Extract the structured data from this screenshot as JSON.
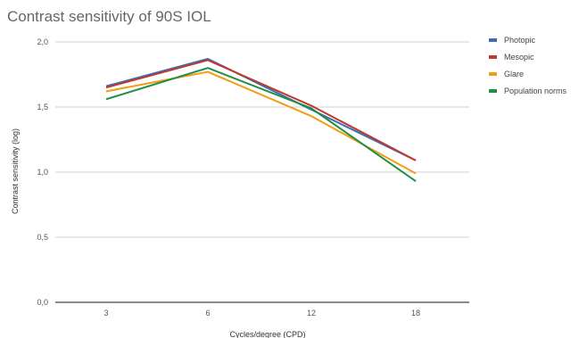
{
  "chart_data": {
    "type": "line",
    "title": "Contrast sensitivity of 90S IOL",
    "xlabel": "Cycles/degree (CPD)",
    "ylabel": "Contrast sensitivity (log)",
    "categories": [
      "3",
      "6",
      "12",
      "18"
    ],
    "ylim": [
      0,
      2
    ],
    "yticks": [
      0,
      0.5,
      1,
      1.5,
      2
    ],
    "ytick_labels": [
      "0,0",
      "0,5",
      "1,0",
      "1,5",
      "2,0"
    ],
    "grid": true,
    "legend_position": "right",
    "series": [
      {
        "name": "Photopic",
        "color": "#3d6db5",
        "values": [
          1.66,
          1.87,
          1.48,
          1.09
        ]
      },
      {
        "name": "Mesopic",
        "color": "#c0392b",
        "values": [
          1.65,
          1.86,
          1.51,
          1.09
        ]
      },
      {
        "name": "Glare",
        "color": "#f39c12",
        "values": [
          1.62,
          1.77,
          1.43,
          0.99
        ]
      },
      {
        "name": "Population norms",
        "color": "#1e8f45",
        "values": [
          1.56,
          1.8,
          1.49,
          0.93
        ]
      }
    ]
  }
}
